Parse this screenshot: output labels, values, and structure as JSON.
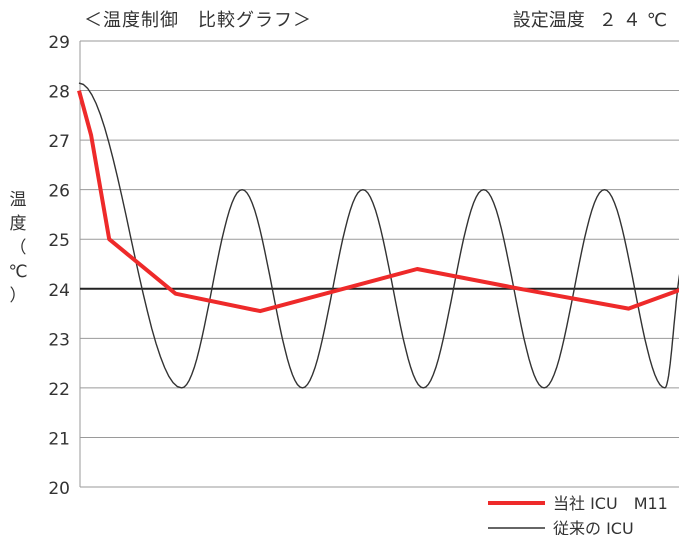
{
  "header": {
    "title": "＜温度制御　比較グラフ＞",
    "setting_label": "設定温度",
    "setting_value": "２４℃"
  },
  "chart_data": {
    "type": "line",
    "title": "＜温度制御　比較グラフ＞",
    "ylabel": "温度（℃）",
    "ylabel_chars": [
      "温",
      "度",
      "（",
      "℃",
      "）"
    ],
    "ylim": [
      20,
      29
    ],
    "yticks": [
      20,
      21,
      22,
      23,
      24,
      25,
      26,
      27,
      28,
      29
    ],
    "xlim": [
      0,
      1
    ],
    "grid": true,
    "legend_position": "bottom-right",
    "setpoint": 24,
    "series": [
      {
        "name": "当社 ICU　M11",
        "color": "#ee2a2a",
        "x": [
          0.0,
          0.02,
          0.05,
          0.16,
          0.3,
          0.56,
          0.73,
          0.91,
          1.0
        ],
        "y": [
          28.0,
          27.1,
          25.0,
          23.9,
          23.55,
          24.4,
          24.0,
          23.6,
          24.0
        ]
      },
      {
        "name": "従来の ICU",
        "color": "#333333",
        "x": [
          0.0,
          0.17,
          0.27,
          0.37,
          0.47,
          0.57,
          0.67,
          0.77,
          0.87,
          0.97,
          1.0
        ],
        "y": [
          28.15,
          22.0,
          26.0,
          22.0,
          26.0,
          22.0,
          26.0,
          22.0,
          26.0,
          22.0,
          24.5
        ]
      }
    ]
  }
}
